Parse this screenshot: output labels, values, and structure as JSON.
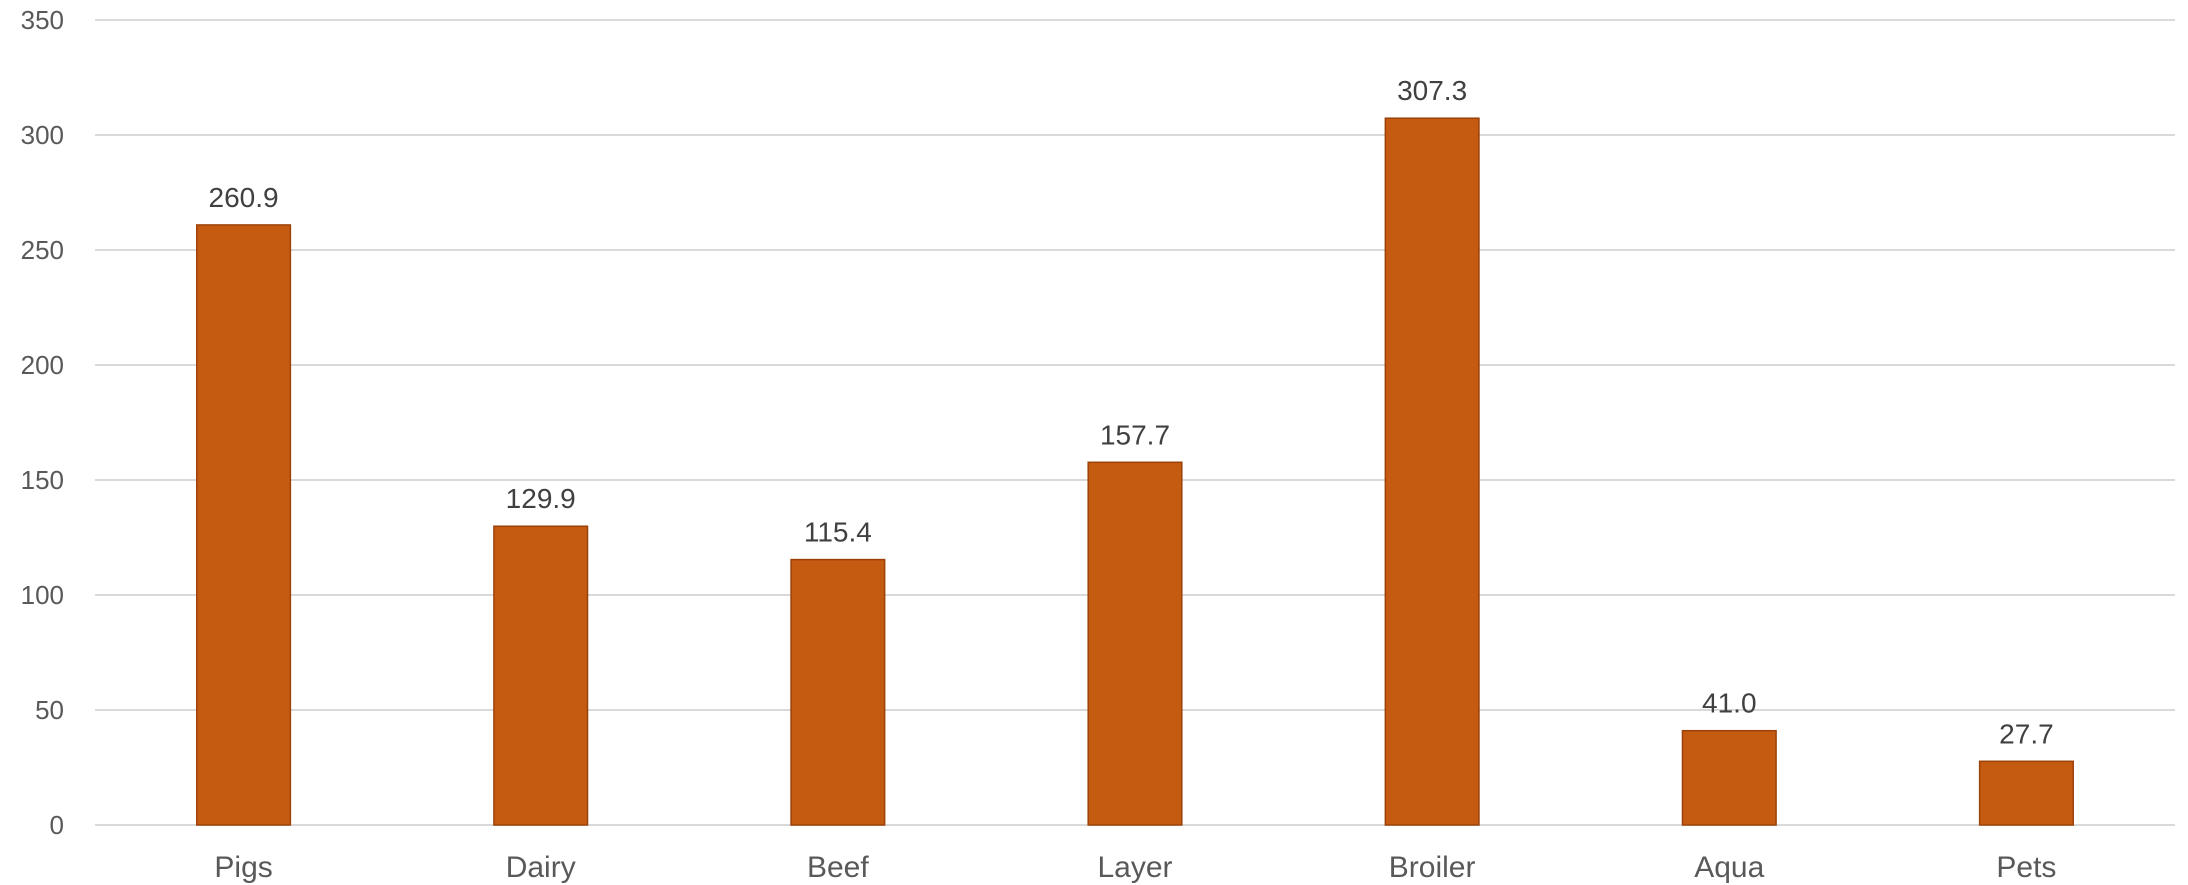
{
  "chart_data": {
    "type": "bar",
    "categories": [
      "Pigs",
      "Dairy",
      "Beef",
      "Layer",
      "Broiler",
      "Aqua",
      "Pets"
    ],
    "values": [
      260.9,
      129.9,
      115.4,
      157.7,
      307.3,
      41.0,
      27.7
    ],
    "data_labels": [
      "260.9",
      "129.9",
      "115.4",
      "157.7",
      "307.3",
      "41.0",
      "27.7"
    ],
    "yticks": [
      0,
      50,
      100,
      150,
      200,
      250,
      300,
      350
    ],
    "ylim": [
      0,
      350
    ],
    "grid": true,
    "legend": "none",
    "bar_color": "#c55a11",
    "bar_edge_color": "#9c4209"
  }
}
